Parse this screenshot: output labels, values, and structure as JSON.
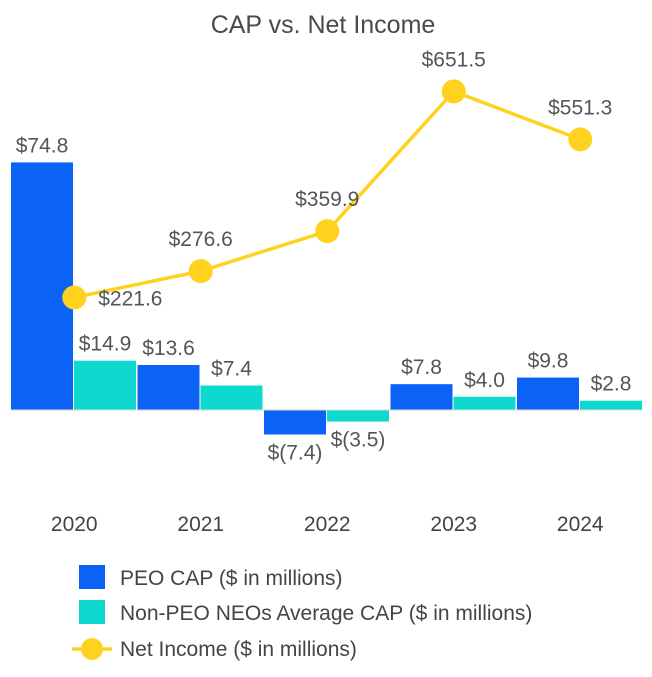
{
  "chart_data": {
    "type": "bar",
    "title": "CAP vs. Net Income",
    "categories": [
      "2020",
      "2021",
      "2022",
      "2023",
      "2024"
    ],
    "series": [
      {
        "name": "PEO CAP ($ in millions)",
        "type": "bar",
        "color": "#0B63F6",
        "values": [
          74.8,
          13.6,
          -7.4,
          7.8,
          9.8
        ],
        "labels": [
          "$74.8",
          "$13.6",
          "$(7.4)",
          "$7.8",
          "$9.8"
        ]
      },
      {
        "name": "Non-PEO NEOs Average CAP ($ in millions)",
        "type": "bar",
        "color": "#0ED9CF",
        "values": [
          14.9,
          7.4,
          -3.5,
          4.0,
          2.8
        ],
        "labels": [
          "$14.9",
          "$7.4",
          "$(3.5)",
          "$4.0",
          "$2.8"
        ]
      },
      {
        "name": "Net Income ($ in millions)",
        "type": "line",
        "color": "#FFD21F",
        "values": [
          221.6,
          276.6,
          359.9,
          651.5,
          551.3
        ],
        "labels": [
          "$221.6",
          "$276.6",
          "$359.9",
          "$651.5",
          "$551.3"
        ]
      }
    ],
    "legend_position": "bottom-left",
    "grid": false
  }
}
